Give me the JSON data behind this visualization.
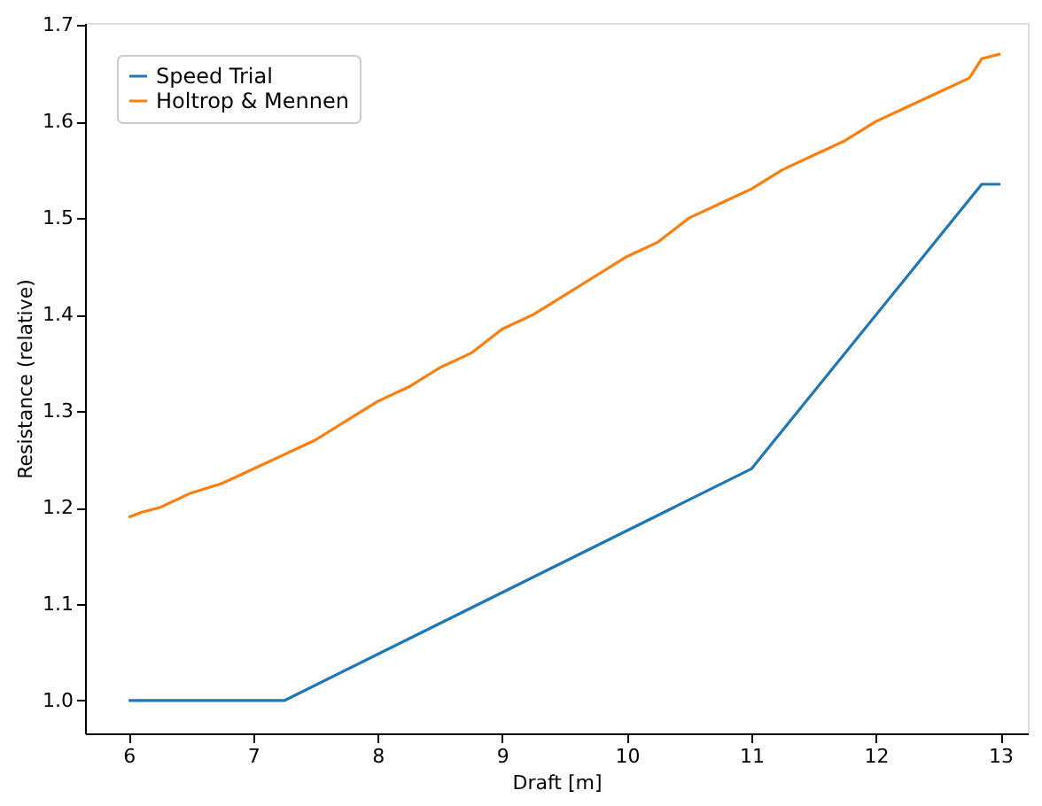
{
  "chart_data": {
    "type": "line",
    "xlabel": "Draft [m]",
    "ylabel": "Resistance (relative)",
    "xlim": [
      5.65,
      13.22
    ],
    "xticks": [
      6,
      7,
      8,
      9,
      10,
      11,
      12,
      13
    ],
    "ylim": [
      0.966,
      1.702
    ],
    "yticks": [
      {
        "value": 1,
        "label": "1.0"
      },
      1.1,
      1.2,
      1.3,
      1.4,
      1.5,
      1.6,
      1.7
    ],
    "grid": false,
    "legend": "top left",
    "series": [
      {
        "name": "Speed Trial",
        "color": "#1f77b4",
        "x": [
          6,
          7.25,
          11,
          12.85,
          13
        ],
        "values": [
          1.0,
          1.0,
          1.24,
          1.535,
          1.535
        ]
      },
      {
        "name": "Holtrop & Mennen",
        "color": "#ff7f0e",
        "x": [
          6,
          6.1,
          6.25,
          6.5,
          6.75,
          7,
          7.25,
          7.5,
          7.75,
          8,
          8.25,
          8.5,
          8.75,
          9,
          9.25,
          9.5,
          9.75,
          10,
          10.25,
          10.5,
          10.75,
          11,
          11.25,
          11.5,
          11.75,
          12,
          12.25,
          12.5,
          12.75,
          12.85,
          13
        ],
        "values": [
          1.19,
          1.195,
          1.2,
          1.215,
          1.225,
          1.24,
          1.255,
          1.27,
          1.29,
          1.31,
          1.325,
          1.345,
          1.36,
          1.385,
          1.4,
          1.42,
          1.44,
          1.46,
          1.475,
          1.5,
          1.515,
          1.53,
          1.55,
          1.565,
          1.58,
          1.6,
          1.615,
          1.63,
          1.645,
          1.665,
          1.67
        ]
      }
    ]
  }
}
